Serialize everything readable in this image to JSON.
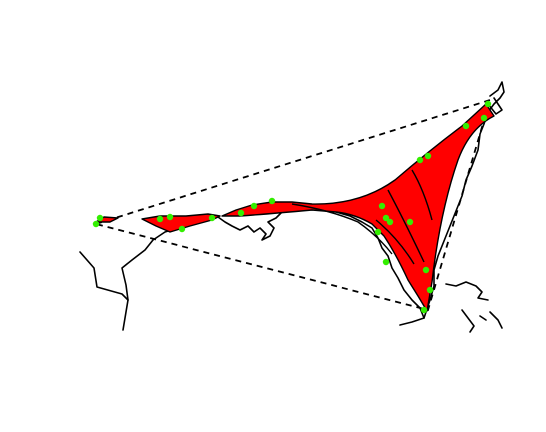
{
  "map": {
    "colors": {
      "alpha_shape_fill": "#ff0000",
      "alpha_shape_stroke": "#000000",
      "point_fill": "#33ee00",
      "coastline": "#000000",
      "convex_hull": "#000000",
      "background": "#ffffff"
    },
    "layers": [
      {
        "name": "coastline",
        "style": "solid"
      },
      {
        "name": "convex-hull",
        "style": "dashed"
      },
      {
        "name": "alpha-shape",
        "style": "filled"
      },
      {
        "name": "occurrence-points",
        "style": "dots"
      }
    ]
  }
}
